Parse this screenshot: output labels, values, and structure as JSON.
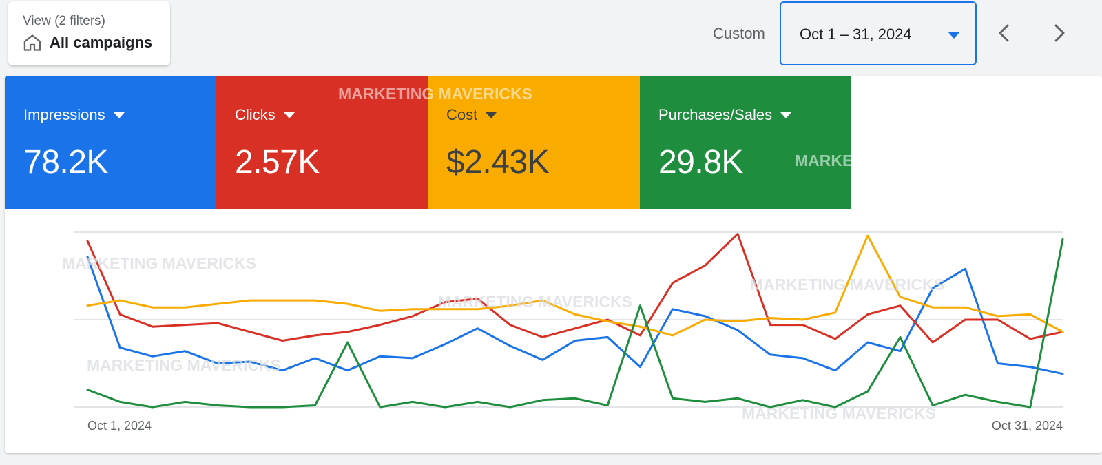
{
  "view": {
    "label": "View (2 filters)",
    "value": "All campaigns",
    "icon": "home-icon"
  },
  "date_range": {
    "preset_label": "Custom",
    "value": "Oct 1 – 31, 2024"
  },
  "metrics": [
    {
      "label": "Impressions",
      "value": "78.2K",
      "color": "#1a73e8"
    },
    {
      "label": "Clicks",
      "value": "2.57K",
      "color": "#d93025"
    },
    {
      "label": "Cost",
      "value": "$2.43K",
      "color": "#f9ab00"
    },
    {
      "label": "Purchases/Sales",
      "value": "29.8K",
      "color": "#1e8e3e"
    }
  ],
  "watermark": "MARKETING MAVERICKS",
  "chart_data": {
    "type": "line",
    "x_start_label": "Oct 1, 2024",
    "x_end_label": "Oct 31, 2024",
    "x": [
      "Oct 1",
      "Oct 2",
      "Oct 3",
      "Oct 4",
      "Oct 5",
      "Oct 6",
      "Oct 7",
      "Oct 8",
      "Oct 9",
      "Oct 10",
      "Oct 11",
      "Oct 12",
      "Oct 13",
      "Oct 14",
      "Oct 15",
      "Oct 16",
      "Oct 17",
      "Oct 18",
      "Oct 19",
      "Oct 20",
      "Oct 21",
      "Oct 22",
      "Oct 23",
      "Oct 24",
      "Oct 25",
      "Oct 26",
      "Oct 27",
      "Oct 28",
      "Oct 29",
      "Oct 30",
      "Oct 31"
    ],
    "y_unit": "relative (0 = baseline, 100 = top gridline)",
    "grid": true,
    "series": [
      {
        "color": "#1a73e8",
        "values": [
          86,
          34,
          29,
          32,
          25,
          26,
          21,
          28,
          21,
          29,
          28,
          36,
          45,
          35,
          27,
          38,
          40,
          23,
          56,
          52,
          44,
          30,
          28,
          21,
          37,
          32,
          68,
          79,
          25,
          23,
          19
        ]
      },
      {
        "color": "#d93025",
        "values": [
          95,
          53,
          46,
          47,
          48,
          43,
          38,
          41,
          43,
          47,
          52,
          60,
          62,
          47,
          40,
          45,
          50,
          41,
          71,
          81,
          99,
          47,
          47,
          39,
          53,
          58,
          37,
          50,
          50,
          39,
          43
        ]
      },
      {
        "color": "#f9ab00",
        "values": [
          58,
          61,
          57,
          57,
          59,
          61,
          61,
          61,
          59,
          55,
          56,
          56,
          56,
          58,
          61,
          53,
          49,
          46,
          41,
          50,
          49,
          51,
          50,
          54,
          98,
          63,
          57,
          57,
          52,
          53,
          43
        ]
      },
      {
        "color": "#1e8e3e",
        "values": [
          10,
          3,
          0,
          3,
          1,
          0,
          0,
          1,
          37,
          0,
          3,
          0,
          3,
          0,
          4,
          5,
          1,
          58,
          5,
          3,
          5,
          0,
          4,
          0,
          9,
          40,
          1,
          7,
          3,
          0,
          96
        ]
      }
    ]
  }
}
